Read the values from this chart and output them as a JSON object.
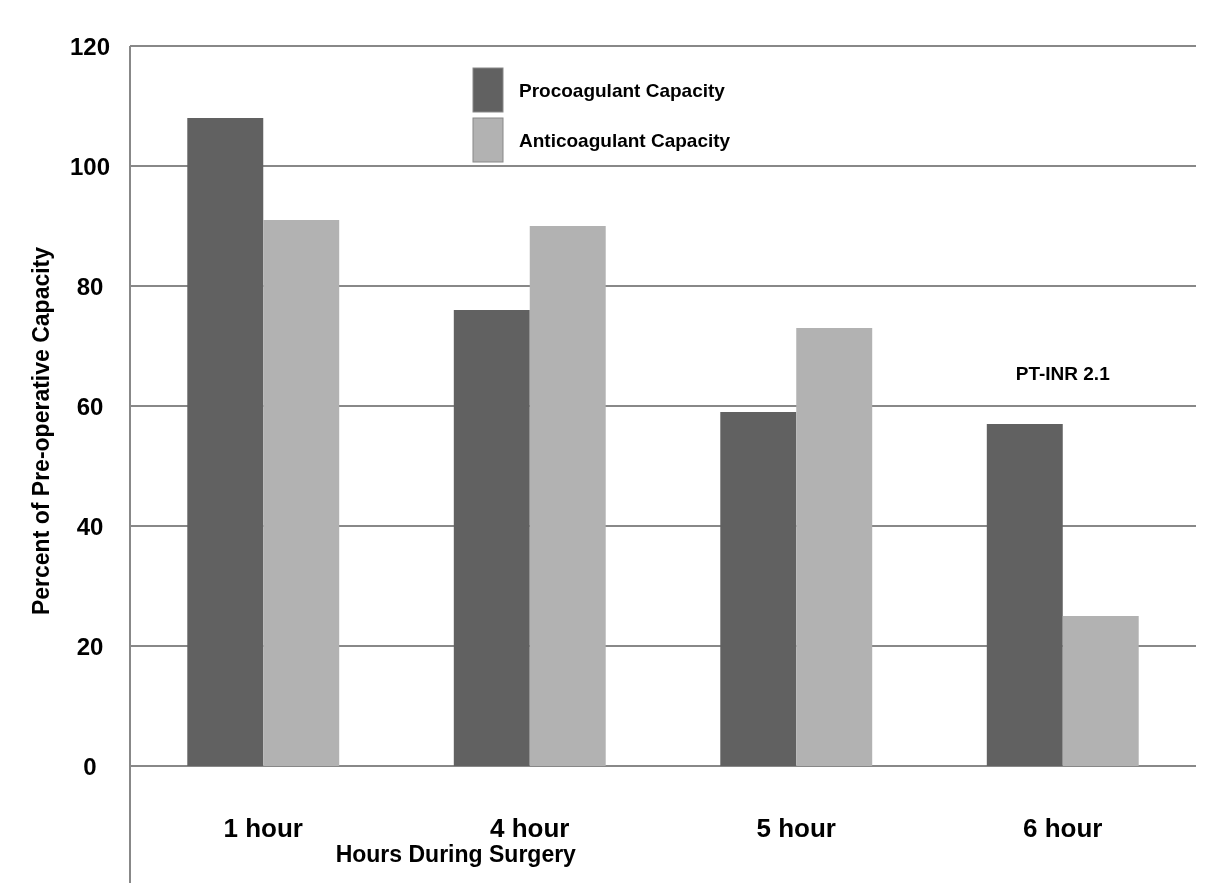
{
  "chart_data": {
    "type": "bar",
    "xlabel": "Hours During Surgery",
    "ylabel": "Percent of Pre-operative Capacity",
    "categories": [
      "1 hour",
      "4 hour",
      "5 hour",
      "6 hour"
    ],
    "series": [
      {
        "name": "Procoagulant Capacity",
        "color": "#616161",
        "values": [
          108,
          76,
          59,
          57
        ]
      },
      {
        "name": "Anticoagulant Capacity",
        "color": "#b2b2b2",
        "values": [
          91,
          90,
          73,
          25
        ]
      }
    ],
    "ylim": [
      0,
      120
    ],
    "yticks": [
      0,
      20,
      40,
      60,
      80,
      100,
      120
    ],
    "grid": "y",
    "legend": "top",
    "annotations": [
      "PT-INR 2.1"
    ]
  }
}
